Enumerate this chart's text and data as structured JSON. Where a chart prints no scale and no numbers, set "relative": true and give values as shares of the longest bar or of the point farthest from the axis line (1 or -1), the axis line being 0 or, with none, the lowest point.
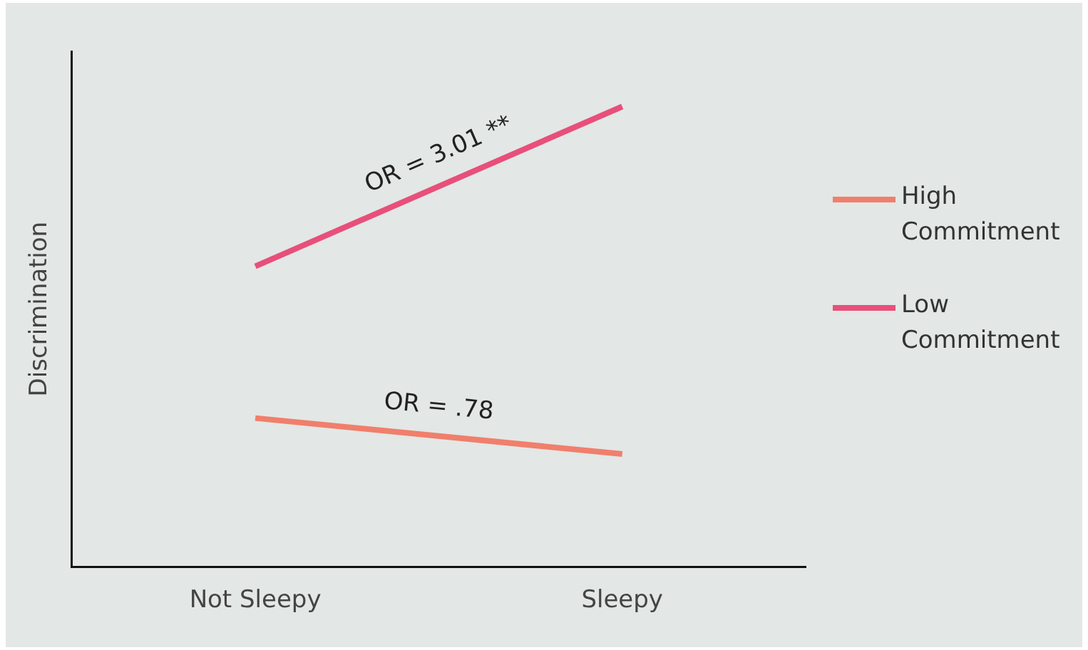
{
  "chart_data": {
    "type": "line",
    "relative": true,
    "ylabel": "Discrimination",
    "categories": [
      "Not Sleepy",
      "Sleepy"
    ],
    "series": [
      {
        "name": "High Commitment",
        "color": "#f07f6c",
        "values": [
          0.323,
          0.245
        ]
      },
      {
        "name": "Low Commitment",
        "color": "#e84f7b",
        "values": [
          0.653,
          1
        ]
      }
    ],
    "annotations": [
      "OR = 3.01 **",
      "OR = .78"
    ],
    "legend": "right",
    "marker": "none",
    "grid": false
  }
}
